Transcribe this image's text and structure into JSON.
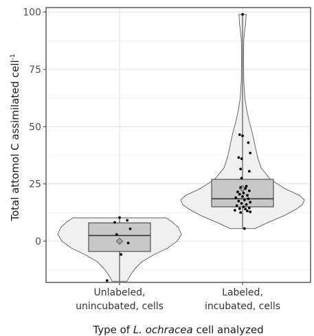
{
  "chart_data": {
    "type": "violin-box-jitter",
    "xlabel": {
      "prefix": "Type of ",
      "italic": "L. ochracea",
      "suffix": " cell analyzed"
    },
    "ylabel": {
      "main": "Total attomol C assimilated cell",
      "superscript": "-1"
    },
    "ylim": [
      -18,
      102
    ],
    "yticks": [
      0,
      25,
      50,
      75,
      100
    ],
    "grid": true,
    "categories": [
      {
        "label_lines": [
          "Unlabeled,",
          "unincubated, cells"
        ],
        "box": {
          "q1": -4.5,
          "median": 2.5,
          "q3": 8,
          "whisker_low": -17.5,
          "whisker_high": 10.2
        },
        "mean": 0,
        "violin_range": [
          -17.5,
          10.2
        ],
        "violin_profile": [
          [
            -17.5,
            0.12
          ],
          [
            -15,
            0.17
          ],
          [
            -12,
            0.25
          ],
          [
            -9,
            0.36
          ],
          [
            -6,
            0.55
          ],
          [
            -3,
            0.78
          ],
          [
            0,
            0.93
          ],
          [
            3,
            1.0
          ],
          [
            6,
            0.95
          ],
          [
            8.5,
            0.85
          ],
          [
            10.2,
            0.75
          ]
        ],
        "points": [
          [
            0.0,
            10.3
          ],
          [
            0.4,
            9.1
          ],
          [
            -0.25,
            8.2
          ],
          [
            0.55,
            5.4
          ],
          [
            -0.15,
            2.9
          ],
          [
            0.45,
            -0.8
          ],
          [
            0.08,
            -5.8
          ],
          [
            -0.65,
            -17.2
          ]
        ]
      },
      {
        "label_lines": [
          "Labeled,",
          "incubated, cells"
        ],
        "box": {
          "q1": 15,
          "median": 18.5,
          "q3": 27,
          "whisker_low": 5.5,
          "whisker_high": 99
        },
        "mean": 23,
        "violin_range": [
          5.5,
          99
        ],
        "violin_profile": [
          [
            5.5,
            0.2
          ],
          [
            8,
            0.4
          ],
          [
            11,
            0.66
          ],
          [
            14,
            0.87
          ],
          [
            16,
            0.97
          ],
          [
            18,
            1.0
          ],
          [
            20,
            0.92
          ],
          [
            23,
            0.68
          ],
          [
            27,
            0.45
          ],
          [
            32,
            0.3
          ],
          [
            37,
            0.24
          ],
          [
            42,
            0.2
          ],
          [
            47,
            0.16
          ],
          [
            52,
            0.11
          ],
          [
            57,
            0.07
          ],
          [
            62,
            0.04
          ],
          [
            70,
            0.02
          ],
          [
            80,
            0.015
          ],
          [
            88,
            0.02
          ],
          [
            92,
            0.035
          ],
          [
            95,
            0.05
          ],
          [
            97.5,
            0.055
          ],
          [
            99,
            0.06
          ]
        ],
        "points": [
          [
            -0.15,
            46.5
          ],
          [
            0.0,
            46.0
          ],
          [
            0.3,
            43.0
          ],
          [
            0.4,
            38.5
          ],
          [
            -0.2,
            36.5
          ],
          [
            -0.05,
            36.0
          ],
          [
            -0.1,
            31.5
          ],
          [
            0.35,
            30.5
          ],
          [
            -0.05,
            27.5
          ],
          [
            0.2,
            24.0
          ],
          [
            -0.1,
            23.5
          ],
          [
            0.15,
            23.0
          ],
          [
            0.35,
            22.0
          ],
          [
            -0.25,
            21.5
          ],
          [
            0.05,
            21.0
          ],
          [
            -0.15,
            20.5
          ],
          [
            0.25,
            20.0
          ],
          [
            0.0,
            19.5
          ],
          [
            -0.35,
            19.0
          ],
          [
            0.3,
            18.5
          ],
          [
            0.1,
            18.0
          ],
          [
            -0.2,
            17.5
          ],
          [
            0.4,
            17.0
          ],
          [
            -0.05,
            16.5
          ],
          [
            0.2,
            16.0
          ],
          [
            -0.3,
            15.5
          ],
          [
            0.05,
            15.0
          ],
          [
            0.35,
            14.5
          ],
          [
            -0.15,
            14.2
          ],
          [
            0.15,
            14.0
          ],
          [
            -0.4,
            13.5
          ],
          [
            0.25,
            13.2
          ],
          [
            0.4,
            12.8
          ],
          [
            -0.1,
            12.5
          ],
          [
            0.1,
            5.5
          ],
          [
            0.0,
            99.0
          ]
        ]
      }
    ]
  }
}
